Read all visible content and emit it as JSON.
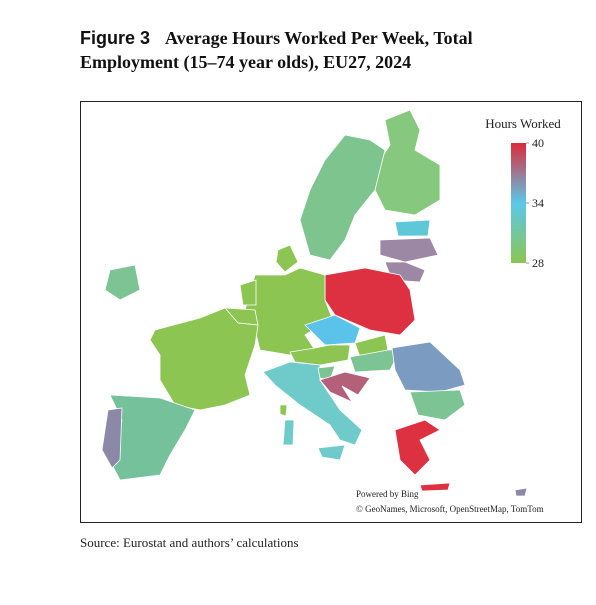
{
  "header": {
    "label": "Figure 3",
    "title_line1": "Average Hours Worked Per Week, Total",
    "title_line2": "Employment (15–74 year olds), EU27, 2024"
  },
  "map": {
    "legend": {
      "title": "Hours Worked",
      "range": [
        28,
        40
      ],
      "ticks": [
        40,
        34,
        28
      ],
      "colors": [
        "#8cc552",
        "#5bc8ea",
        "#dd2a3a"
      ]
    },
    "credit": "Powered by Bing",
    "attribution": "© GeoNames, Microsoft, OpenStreetMap, TomTom"
  },
  "footer": {
    "source": "Source: Eurostat and authors’ calculations"
  }
}
